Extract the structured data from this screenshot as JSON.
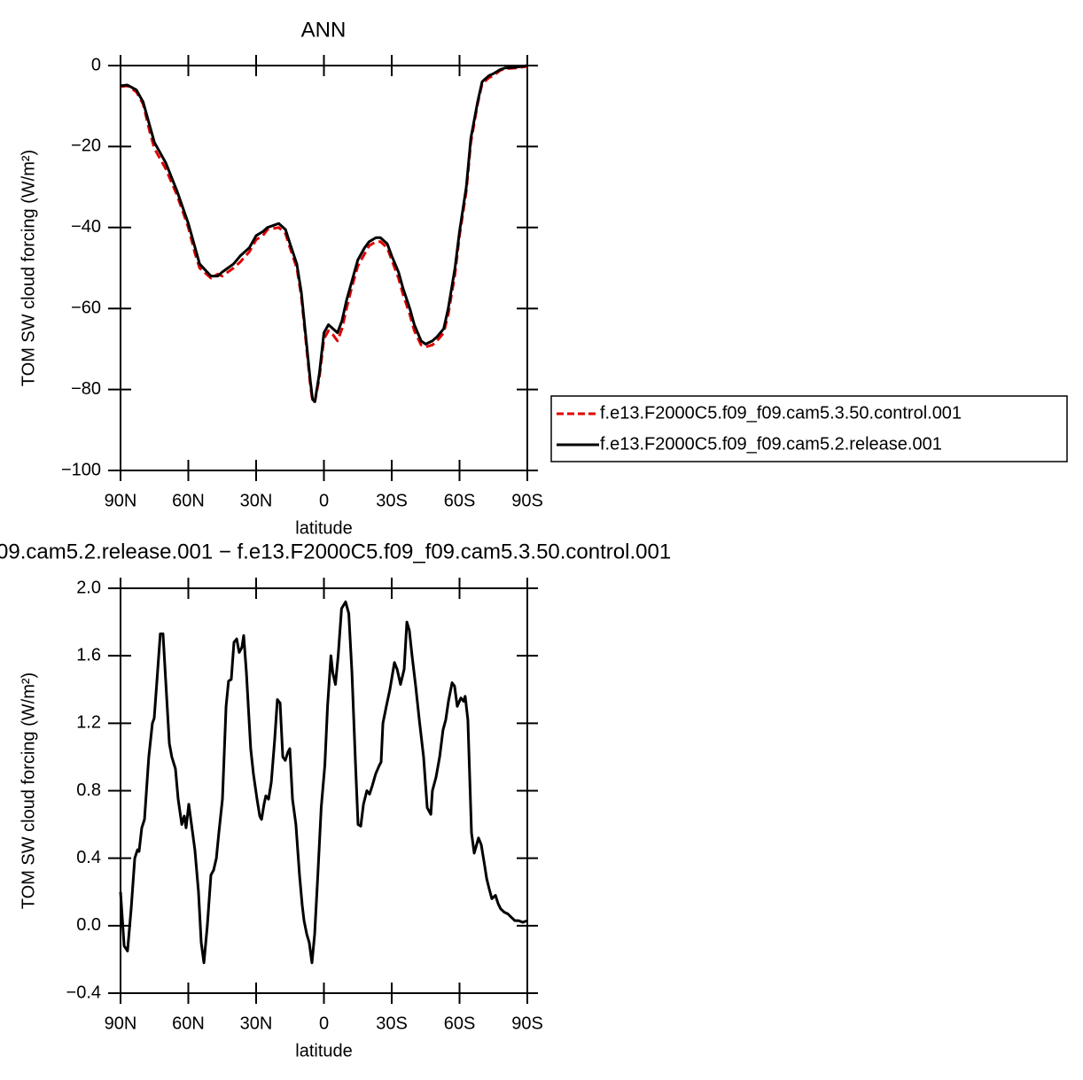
{
  "chart_data": [
    {
      "type": "line",
      "title": "ANN",
      "x_label": "latitude",
      "y_label": "TOM SW cloud forcing (W/m²)",
      "xlim": [
        90,
        -90
      ],
      "xticks": [
        {
          "value": 90,
          "label": "90N"
        },
        {
          "value": 60,
          "label": "60N"
        },
        {
          "value": 30,
          "label": "30N"
        },
        0,
        {
          "value": -30,
          "label": "30S"
        },
        {
          "value": -60,
          "label": "60S"
        },
        {
          "value": -90,
          "label": "90S"
        }
      ],
      "ylim": [
        -100,
        0
      ],
      "yticks": [
        0,
        {
          "value": -20,
          "label": "−20"
        },
        {
          "value": -40,
          "label": "−40"
        },
        {
          "value": -60,
          "label": "−60"
        },
        {
          "value": -80,
          "label": "−80"
        },
        {
          "value": -100,
          "label": "−100"
        }
      ],
      "legend": "right",
      "x": [
        90,
        87,
        83,
        80,
        77,
        75,
        70,
        65,
        60,
        57,
        55,
        50,
        47,
        45,
        40,
        37,
        33,
        30,
        27,
        25,
        20,
        17,
        15,
        12,
        10,
        8,
        6,
        5,
        4,
        2,
        0,
        -2,
        -4,
        -6,
        -8,
        -10,
        -12,
        -15,
        -18,
        -20,
        -23,
        -25,
        -28,
        -30,
        -33,
        -35,
        -38,
        -40,
        -43,
        -45,
        -48,
        -50,
        -53,
        -55,
        -58,
        -60,
        -63,
        -65,
        -68,
        -70,
        -73,
        -75,
        -78,
        -80,
        -85,
        -90
      ],
      "series": [
        {
          "name": "f.e13.F2000C5.f09_f09.cam5.3.50.control.001",
          "color": "#e00000",
          "dashed": true,
          "values": [
            -5.2,
            -5,
            -6.5,
            -9.5,
            -16.5,
            -20.5,
            -25.5,
            -32,
            -40,
            -46.5,
            -50,
            -52.5,
            -51.5,
            -52,
            -50,
            -48.5,
            -46,
            -43,
            -42,
            -40.5,
            -40,
            -41.5,
            -45,
            -50,
            -57,
            -68,
            -79,
            -83,
            -83,
            -77,
            -67.5,
            -65.5,
            -66.5,
            -68,
            -65,
            -60,
            -55.5,
            -49.5,
            -46.5,
            -44.5,
            -43.5,
            -43.5,
            -45,
            -48,
            -52.5,
            -56.5,
            -61.5,
            -65.5,
            -69,
            -69.5,
            -69,
            -68,
            -66,
            -61.5,
            -51.5,
            -42,
            -31,
            -19,
            -9.5,
            -4.5,
            -3,
            -2.5,
            -1.2,
            -0.8,
            -0.6,
            -0.2
          ]
        },
        {
          "name": "f.e13.F2000C5.f09_f09.cam5.2.release.001",
          "color": "#000000",
          "dashed": false,
          "values": [
            -5,
            -4.8,
            -6,
            -9,
            -15,
            -19,
            -24,
            -31,
            -39,
            -45,
            -49,
            -52,
            -52,
            -51,
            -49,
            -47,
            -45,
            -42,
            -41,
            -40,
            -39,
            -40.5,
            -44,
            -49,
            -56,
            -67,
            -78,
            -82.5,
            -83,
            -76,
            -66,
            -64,
            -65,
            -66,
            -63,
            -58,
            -54,
            -48,
            -45,
            -43.5,
            -42.5,
            -42.5,
            -44,
            -47,
            -51,
            -55,
            -60,
            -64,
            -68,
            -68.8,
            -68,
            -67,
            -65,
            -60,
            -50,
            -41,
            -30,
            -18,
            -9,
            -4,
            -2.5,
            -2,
            -1,
            -0.6,
            -0.4,
            0
          ]
        }
      ]
    },
    {
      "type": "line",
      "title": "09.cam5.2.release.001 − f.e13.F2000C5.f09_f09.cam5.3.50.control.001",
      "x_label": "latitude",
      "y_label": "TOM SW cloud forcing (W/m²)",
      "xlim": [
        90,
        -90
      ],
      "xticks": [
        {
          "value": 90,
          "label": "90N"
        },
        {
          "value": 60,
          "label": "60N"
        },
        {
          "value": 30,
          "label": "30N"
        },
        0,
        {
          "value": -30,
          "label": "30S"
        },
        {
          "value": -60,
          "label": "60S"
        },
        {
          "value": -90,
          "label": "90S"
        }
      ],
      "ylim": [
        -0.4,
        2.0
      ],
      "yticks": [
        {
          "value": 2.0,
          "label": "2.0"
        },
        1.6,
        1.2,
        0.8,
        0.4,
        {
          "value": 0,
          "label": "0.0"
        },
        {
          "value": -0.4,
          "label": "−0.4"
        }
      ],
      "x": [
        90,
        88.4,
        86.9,
        85.3,
        83.7,
        82.5,
        81.8,
        80.6,
        79.4,
        77.5,
        75.9,
        75.1,
        73.9,
        72.4,
        71.2,
        70,
        68.4,
        67.3,
        65.7,
        64.5,
        62.9,
        61.8,
        61,
        59.8,
        58.6,
        57.1,
        55.5,
        54.3,
        53.1,
        51.6,
        50,
        48.8,
        47.6,
        46.5,
        44.9,
        43.3,
        42.2,
        41,
        39.8,
        38.6,
        37.5,
        36.3,
        35.5,
        34.3,
        32.4,
        31.2,
        29.6,
        28.4,
        27.6,
        26.5,
        25.7,
        24.5,
        23.3,
        21.8,
        20.6,
        19.4,
        18.2,
        17.1,
        15.9,
        15.1,
        13.9,
        12.4,
        10.8,
        9.6,
        8.8,
        7.6,
        6.5,
        5.3,
        4.1,
        2.7,
        1.2,
        -0.4,
        -1.6,
        -3.1,
        -3.9,
        -5.1,
        -6.3,
        -7.8,
        -9.6,
        -11,
        -12.4,
        -14,
        -15.1,
        -16.3,
        -17.5,
        -19,
        -20.2,
        -21.4,
        -22.9,
        -24.5,
        -25.3,
        -26.1,
        -27.6,
        -29.2,
        -31.2,
        -32.4,
        -33.9,
        -35.5,
        -36.7,
        -37.8,
        -39,
        -40.6,
        -42.2,
        -44.1,
        -45.7,
        -47.3,
        -48,
        -49.6,
        -51.2,
        -52.7,
        -53.9,
        -55.1,
        -56.7,
        -57.8,
        -59,
        -60.6,
        -61.8,
        -62.5,
        -63.7,
        -65.3,
        -66.5,
        -68.4,
        -69.6,
        -71.2,
        -72,
        -73.1,
        -74.3,
        -75.9,
        -77.1,
        -78.2,
        -79.8,
        -81.4,
        -82.9,
        -84.5,
        -86.1,
        -88,
        -90
      ],
      "series": [
        {
          "color": "#000000",
          "values": [
            0.2,
            -0.12,
            -0.15,
            0.1,
            0.4,
            0.45,
            0.44,
            0.58,
            0.63,
            1.0,
            1.2,
            1.23,
            1.45,
            1.73,
            1.73,
            1.45,
            1.08,
            1.0,
            0.93,
            0.75,
            0.6,
            0.65,
            0.58,
            0.72,
            0.6,
            0.45,
            0.2,
            -0.1,
            -0.22,
            0.0,
            0.3,
            0.33,
            0.4,
            0.55,
            0.75,
            1.3,
            1.45,
            1.46,
            1.68,
            1.7,
            1.62,
            1.65,
            1.72,
            1.5,
            1.05,
            0.9,
            0.75,
            0.65,
            0.63,
            0.72,
            0.77,
            0.75,
            0.85,
            1.1,
            1.34,
            1.32,
            1.0,
            0.98,
            1.03,
            1.05,
            0.75,
            0.6,
            0.3,
            0.12,
            0.03,
            -0.05,
            -0.1,
            -0.22,
            -0.05,
            0.3,
            0.7,
            0.95,
            1.3,
            1.6,
            1.5,
            1.43,
            1.6,
            1.88,
            1.92,
            1.85,
            1.5,
            0.95,
            0.6,
            0.59,
            0.72,
            0.8,
            0.78,
            0.83,
            0.9,
            0.95,
            0.97,
            1.2,
            1.3,
            1.4,
            1.56,
            1.52,
            1.43,
            1.52,
            1.8,
            1.75,
            1.6,
            1.42,
            1.22,
            1.0,
            0.7,
            0.66,
            0.8,
            0.88,
            1.0,
            1.16,
            1.22,
            1.33,
            1.44,
            1.42,
            1.3,
            1.35,
            1.33,
            1.36,
            1.22,
            0.55,
            0.43,
            0.52,
            0.48,
            0.35,
            0.28,
            0.22,
            0.16,
            0.18,
            0.13,
            0.1,
            0.08,
            0.07,
            0.05,
            0.03,
            0.03,
            0.02,
            0.03
          ]
        }
      ]
    }
  ]
}
